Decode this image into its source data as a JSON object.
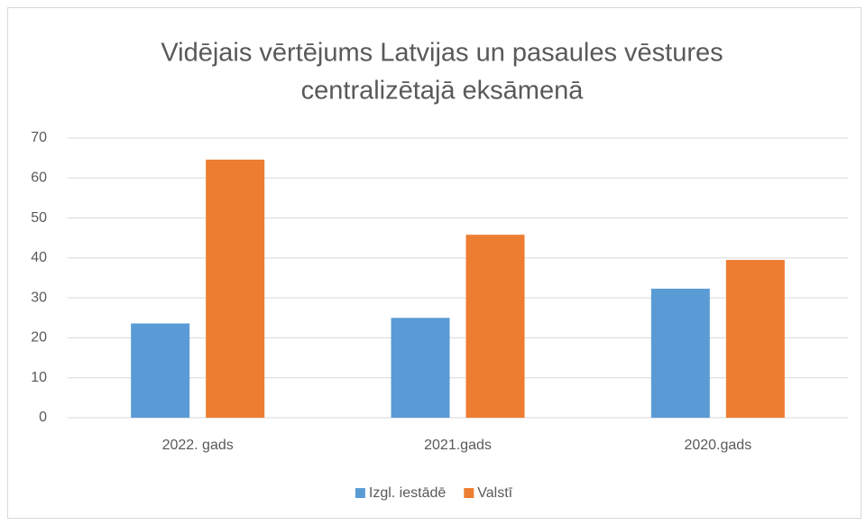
{
  "chart_data": {
    "type": "bar",
    "title": [
      "Vidējais vērtējums Latvijas un pasaules vēstures",
      "centralizētajā eksāmenā"
    ],
    "categories": [
      "2022. gads",
      "2021.gads",
      "2020.gads"
    ],
    "series": [
      {
        "name": "Izgl. iestādē",
        "color": "#5b9bd5",
        "values": [
          23.6,
          25,
          32.3
        ]
      },
      {
        "name": "Valstī",
        "color": "#ed7d31",
        "values": [
          64.6,
          45.8,
          39.5
        ]
      }
    ],
    "ylim": [
      0,
      70
    ],
    "yticks": [
      0,
      10,
      20,
      30,
      40,
      50,
      60,
      70
    ],
    "grid": true,
    "legend": "bottom"
  }
}
